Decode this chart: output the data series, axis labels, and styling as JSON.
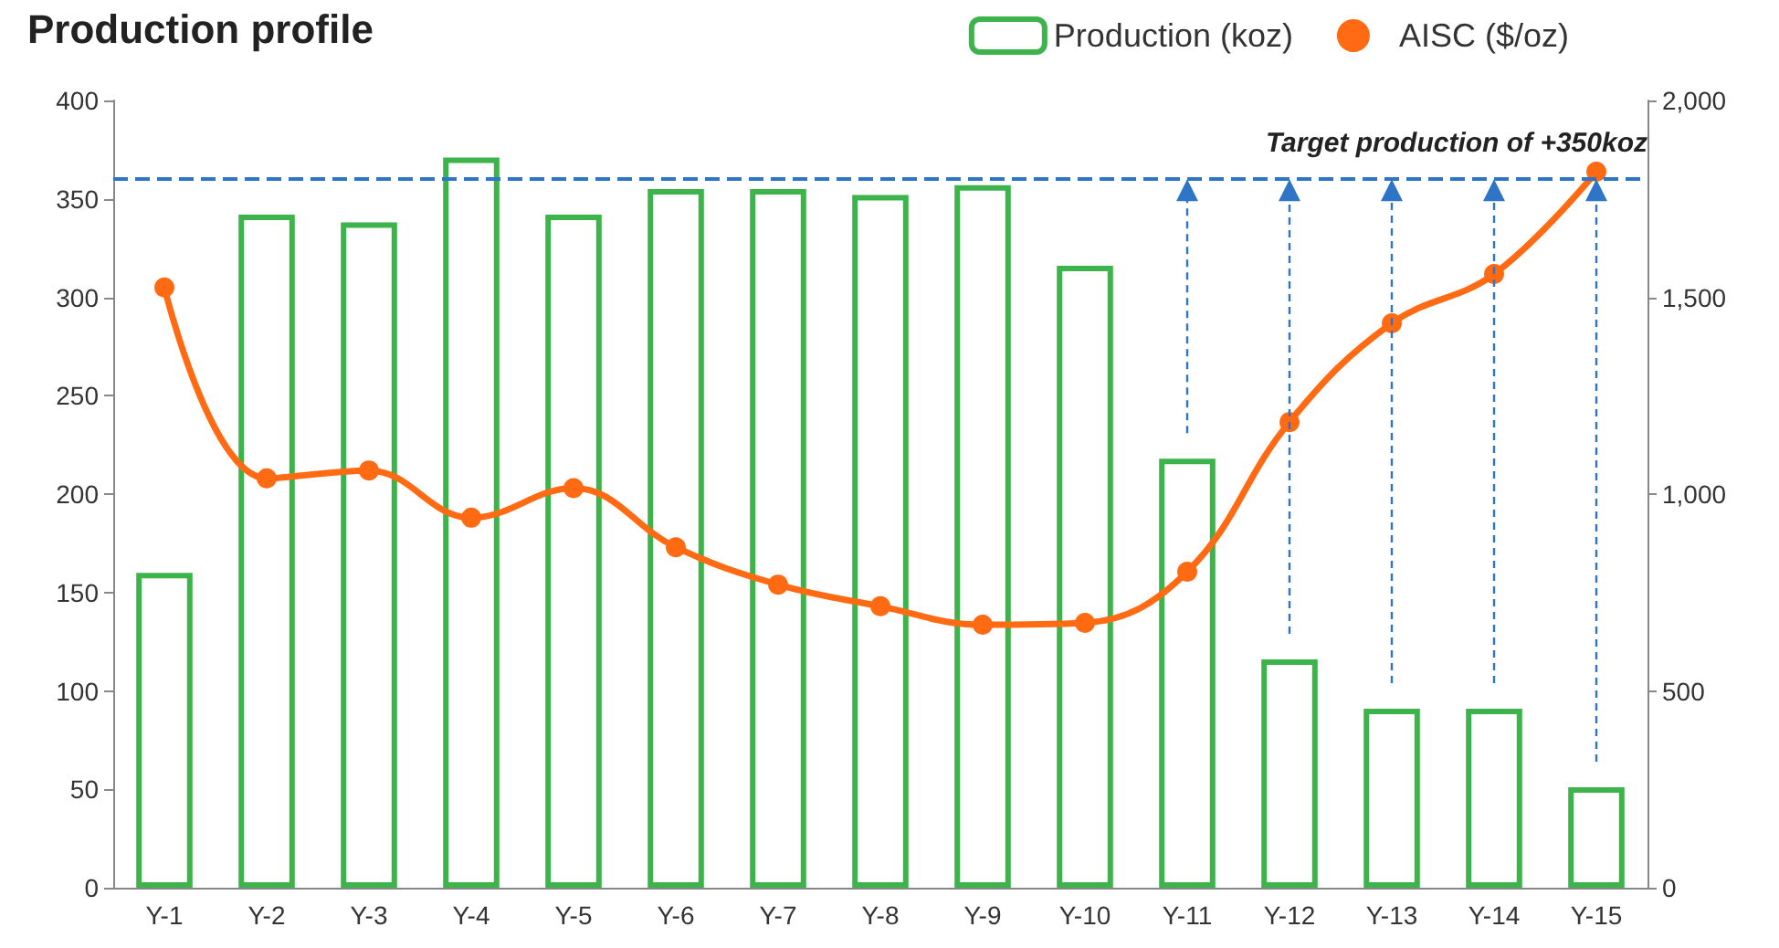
{
  "chart_data": {
    "type": "bar",
    "title": "Production profile",
    "categories": [
      "Y-1",
      "Y-2",
      "Y-3",
      "Y-4",
      "Y-5",
      "Y-6",
      "Y-7",
      "Y-8",
      "Y-9",
      "Y-10",
      "Y-11",
      "Y-12",
      "Y-13",
      "Y-14",
      "Y-15"
    ],
    "series": [
      {
        "name": "Production (koz)",
        "color": "#3cb44b",
        "values": [
          160,
          342,
          338,
          371,
          342,
          355,
          355,
          352,
          357,
          316,
          218,
          116,
          91,
          91,
          51
        ]
      },
      {
        "name": "AISC ($/oz)",
        "type": "line",
        "axis": "y2",
        "color": "#ff6a13",
        "marker": "circle",
        "values": [
          1525,
          1040,
          1060,
          940,
          1015,
          865,
          770,
          715,
          668,
          673,
          803,
          1183,
          1434,
          1559,
          1819
        ]
      }
    ],
    "ylim": [
      0,
      400
    ],
    "yticks": [
      0,
      50,
      100,
      150,
      200,
      250,
      300,
      350,
      400
    ],
    "y2lim": [
      0,
      2000
    ],
    "y2ticks": [
      {
        "value": 0,
        "label": "0"
      },
      {
        "value": 500,
        "label": "500"
      },
      {
        "value": 1000,
        "label": "1,000"
      },
      {
        "value": 1500,
        "label": "1,500"
      },
      {
        "value": 2000,
        "label": "2,000"
      }
    ],
    "ref_lines": [
      {
        "axis": "y",
        "value": 360,
        "label": "Target production of +350koz",
        "color": "#2e75c7",
        "line_style": "dashed"
      }
    ],
    "grid": false,
    "legend": "top right"
  }
}
